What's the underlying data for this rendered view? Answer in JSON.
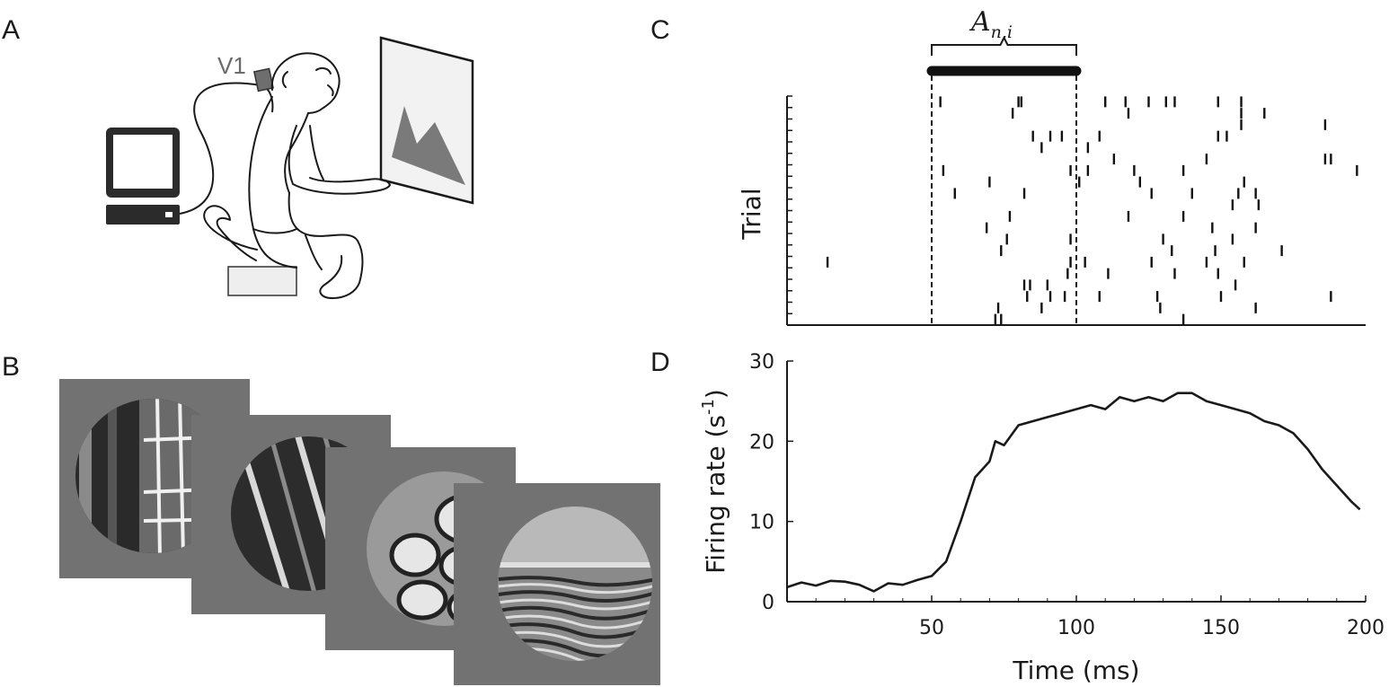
{
  "panel_labels": {
    "a": "A",
    "b": "B",
    "c": "C",
    "d": "D"
  },
  "panel_a": {
    "electrode_label": "V1"
  },
  "panel_c": {
    "window_label": "A",
    "window_subscript": "n,i",
    "ylabel": "Trial"
  },
  "chart_data": [
    {
      "type": "scatter",
      "panel": "C",
      "xlabel": "",
      "ylabel": "Trial",
      "xlim": [
        0,
        200
      ],
      "trials": 20,
      "window": [
        50,
        100
      ],
      "spikes": [
        {
          "trial": 1,
          "t": [
            53,
            80,
            81,
            110,
            117,
            125,
            131,
            134,
            149,
            157
          ]
        },
        {
          "trial": 2,
          "t": [
            78,
            118,
            157,
            165
          ]
        },
        {
          "trial": 3,
          "t": [
            157,
            186
          ]
        },
        {
          "trial": 4,
          "t": [
            85,
            91,
            95,
            108,
            149,
            152
          ]
        },
        {
          "trial": 5,
          "t": [
            88,
            104
          ]
        },
        {
          "trial": 6,
          "t": [
            113,
            145,
            186,
            188
          ]
        },
        {
          "trial": 7,
          "t": [
            54,
            98,
            104,
            120,
            137,
            197
          ]
        },
        {
          "trial": 8,
          "t": [
            70,
            101,
            122,
            158
          ]
        },
        {
          "trial": 9,
          "t": [
            58,
            82,
            126,
            140,
            156,
            162
          ]
        },
        {
          "trial": 10,
          "t": [
            154,
            163
          ]
        },
        {
          "trial": 11,
          "t": [
            77,
            118,
            137
          ]
        },
        {
          "trial": 12,
          "t": [
            69,
            147,
            162
          ]
        },
        {
          "trial": 13,
          "t": [
            76,
            98,
            130,
            154
          ]
        },
        {
          "trial": 14,
          "t": [
            74,
            133,
            148,
            171
          ]
        },
        {
          "trial": 15,
          "t": [
            14,
            98,
            103,
            126,
            145,
            158
          ]
        },
        {
          "trial": 16,
          "t": [
            97,
            111,
            134,
            149
          ]
        },
        {
          "trial": 17,
          "t": [
            82,
            84,
            90,
            155
          ]
        },
        {
          "trial": 18,
          "t": [
            83,
            91,
            96,
            108,
            128,
            150,
            188
          ]
        },
        {
          "trial": 19,
          "t": [
            73,
            88,
            129,
            162
          ]
        },
        {
          "trial": 20,
          "t": [
            72,
            74,
            137
          ]
        }
      ]
    },
    {
      "type": "line",
      "panel": "D",
      "xlabel": "Time (ms)",
      "ylabel": "Firing rate (s-1)",
      "ylabel_main": "Firing rate (s",
      "ylabel_sup": "-1",
      "ylabel_close": ")",
      "xlim": [
        0,
        200
      ],
      "ylim": [
        0,
        30
      ],
      "xticks": [
        50,
        100,
        150,
        200
      ],
      "yticks": [
        0,
        10,
        20,
        30
      ],
      "x": [
        0,
        5,
        10,
        15,
        20,
        25,
        30,
        35,
        40,
        45,
        50,
        55,
        60,
        65,
        70,
        72,
        75,
        80,
        85,
        90,
        95,
        100,
        105,
        110,
        115,
        120,
        125,
        130,
        135,
        140,
        145,
        150,
        155,
        160,
        165,
        170,
        175,
        180,
        185,
        190,
        195,
        198
      ],
      "y": [
        1.8,
        2.4,
        2.0,
        2.6,
        2.5,
        2.1,
        1.3,
        2.3,
        2.1,
        2.7,
        3.2,
        5.0,
        10.0,
        15.5,
        17.5,
        20.0,
        19.5,
        22.0,
        22.5,
        23.0,
        23.5,
        24.0,
        24.5,
        24.0,
        25.5,
        25.0,
        25.5,
        25.0,
        26.0,
        26.0,
        25.0,
        24.5,
        24.0,
        23.5,
        22.5,
        22.0,
        21.0,
        19.0,
        16.5,
        14.5,
        12.5,
        11.5
      ]
    }
  ]
}
